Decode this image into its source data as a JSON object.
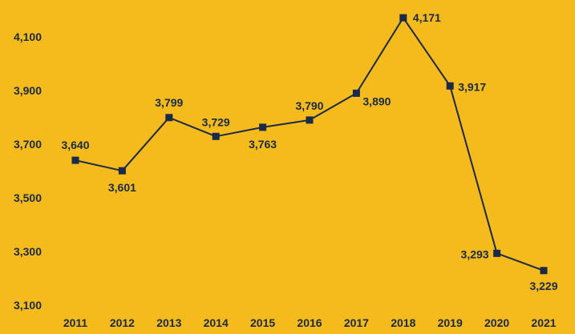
{
  "colors": {
    "background": "#F5BA1B",
    "line": "#1B2A4A",
    "marker": "#1B2A4A",
    "text": "#1B2A4A"
  },
  "chart_data": {
    "type": "line",
    "title": "",
    "xlabel": "",
    "ylabel": "",
    "categories": [
      "2011",
      "2012",
      "2013",
      "2014",
      "2015",
      "2016",
      "2017",
      "2018",
      "2019",
      "2020",
      "2021"
    ],
    "series": [
      {
        "values": [
          3640,
          3601,
          3799,
          3729,
          3763,
          3790,
          3890,
          4171,
          3917,
          3293,
          3229
        ],
        "labels": [
          "3,640",
          "3,601",
          "3,799",
          "3,729",
          "3,763",
          "3,790",
          "3,890",
          "4,171",
          "3,917",
          "3,293",
          "3,229"
        ],
        "marker": "square"
      }
    ],
    "ylim": [
      3100,
      4200
    ],
    "yticks": [
      3100,
      3300,
      3500,
      3700,
      3900,
      4100
    ],
    "ytick_labels": [
      "3,100",
      "3,300",
      "3,500",
      "3,700",
      "3,900",
      "4,100"
    ],
    "grid": false,
    "legend": "none"
  }
}
